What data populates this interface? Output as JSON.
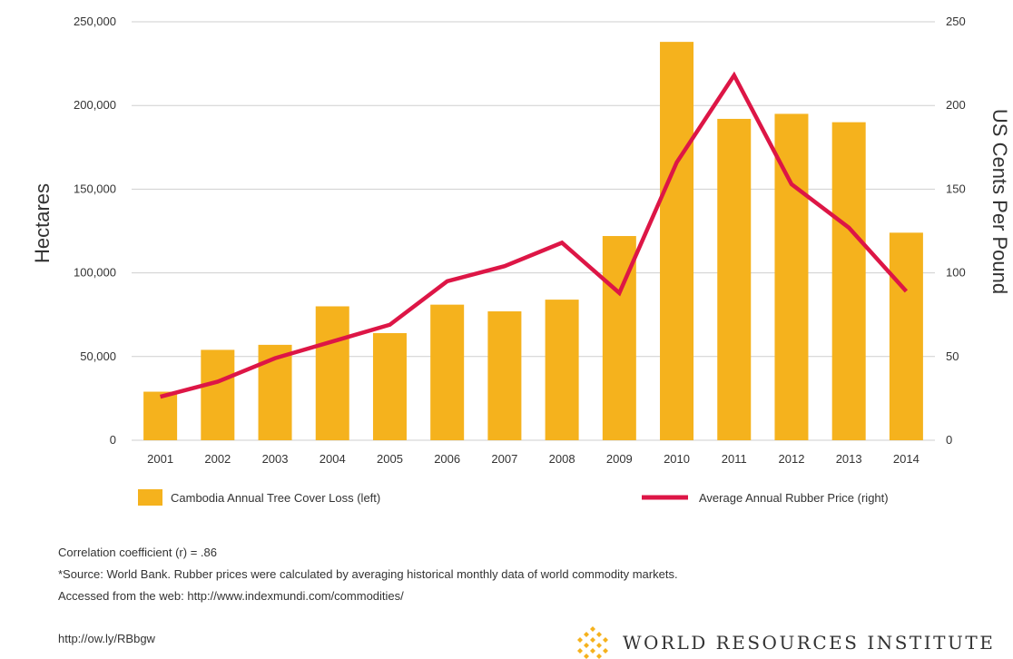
{
  "chart_data": {
    "type": "bar+line",
    "categories": [
      "2001",
      "2002",
      "2003",
      "2004",
      "2005",
      "2006",
      "2007",
      "2008",
      "2009",
      "2010",
      "2011",
      "2012",
      "2013",
      "2014"
    ],
    "series": [
      {
        "name": "Cambodia Annual Tree Cover Loss (left)",
        "type": "bar",
        "axis": "left",
        "color": "#F5B21D",
        "values": [
          29000,
          54000,
          57000,
          80000,
          64000,
          81000,
          77000,
          84000,
          122000,
          238000,
          192000,
          195000,
          190000,
          124000
        ]
      },
      {
        "name": "Average Annual Rubber Price (right)",
        "type": "line",
        "axis": "right",
        "color": "#DD1646",
        "values": [
          26,
          35,
          49,
          59,
          69,
          95,
          104,
          118,
          88,
          166,
          218,
          153,
          127,
          89
        ]
      }
    ],
    "ylabel": "Hectares",
    "y2label": "US Cents Per Pound",
    "ylim": [
      0,
      250000
    ],
    "y2lim": [
      0,
      250
    ],
    "yticks": [
      "0",
      "50,000",
      "100,000",
      "150,000",
      "200,000",
      "250,000"
    ],
    "y2ticks": [
      "0",
      "50",
      "100",
      "150",
      "200",
      "250"
    ],
    "grid": true,
    "legend": "bottom"
  },
  "notes": {
    "correlation": "Correlation coefficient (r) = .86",
    "source": "*Source: World Bank. Rubber prices were calculated by averaging historical monthly data of world commodity markets.",
    "accessed": "Accessed from the web: http://www.indexmundi.com/commodities/"
  },
  "short_link": "http://ow.ly/RBbgw",
  "brand": {
    "name": "WORLD RESOURCES INSTITUTE",
    "logo_icon": "wri-logo-icon",
    "logo_color": "#F5B21D"
  }
}
